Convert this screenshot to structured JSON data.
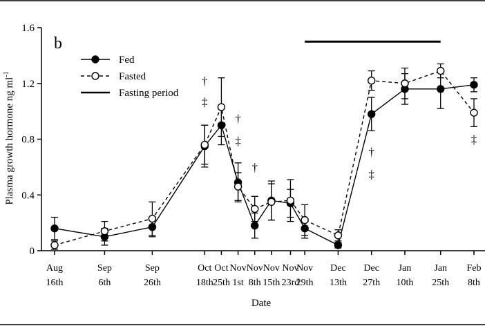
{
  "chart_data": {
    "type": "line",
    "panel_label": "b",
    "xlabel": "Date",
    "ylabel": "Plasma growth hormone ng ml",
    "ylabel_sup": "-1",
    "ylim": [
      0,
      1.6
    ],
    "yticks": [
      "0",
      "0.4",
      "0.8",
      "1.2",
      "1.6"
    ],
    "x_dates": [
      "Aug 16",
      "Sep 6",
      "Sep 26",
      "Oct 18",
      "Oct 25",
      "Nov 1",
      "Nov 8",
      "Nov 15",
      "Nov 23",
      "Nov 29",
      "Dec 13",
      "Dec 27",
      "Jan 10",
      "Jan 25",
      "Feb 8"
    ],
    "xticks": [
      {
        "month": "Aug",
        "day": "16th"
      },
      {
        "month": "Sep",
        "day": "6th"
      },
      {
        "month": "Sep",
        "day": "26th"
      },
      {
        "month": "Oct",
        "day": "18th"
      },
      {
        "month": "Oct",
        "day": "25th"
      },
      {
        "month": "Nov",
        "day": "1st"
      },
      {
        "month": "Nov",
        "day": "8th"
      },
      {
        "month": "Nov",
        "day": "15th"
      },
      {
        "month": "Nov",
        "day": "23rd"
      },
      {
        "month": "Nov",
        "day": "29th"
      },
      {
        "month": "Dec",
        "day": "13th"
      },
      {
        "month": "Dec",
        "day": "27th"
      },
      {
        "month": "Jan",
        "day": "10th"
      },
      {
        "month": "Jan",
        "day": "25th"
      },
      {
        "month": "Feb",
        "day": "8th"
      }
    ],
    "series": [
      {
        "name": "Fed",
        "style": "solid",
        "marker": "filled-circle",
        "values": [
          0.16,
          0.1,
          0.17,
          0.75,
          0.9,
          0.49,
          0.18,
          0.36,
          0.34,
          0.16,
          0.04,
          0.98,
          1.16,
          1.16,
          1.19
        ],
        "errors": [
          0.08,
          0.06,
          0.07,
          0.15,
          0.14,
          0.14,
          0.09,
          0.14,
          0.1,
          0.07,
          0.02,
          0.12,
          0.11,
          0.14,
          0.05
        ]
      },
      {
        "name": "Fasted",
        "style": "dashed",
        "marker": "open-circle",
        "values": [
          0.04,
          0.14,
          0.23,
          0.76,
          1.03,
          0.46,
          0.3,
          0.35,
          0.36,
          0.22,
          0.11,
          1.22,
          1.2,
          1.29,
          0.99
        ],
        "errors": [
          0.03,
          0.07,
          0.12,
          0.14,
          0.21,
          0.1,
          0.09,
          0.13,
          0.15,
          0.11,
          0.04,
          0.07,
          0.11,
          0.05,
          0.1
        ]
      }
    ],
    "fasting_period": {
      "name": "Fasting period",
      "start": "Nov 29",
      "end": "Jan 25",
      "y": 1.5
    },
    "annotations": [
      {
        "x": "Oct 18",
        "y": 1.19,
        "text": "†"
      },
      {
        "x": "Oct 18",
        "y": 1.04,
        "text": "‡"
      },
      {
        "x": "Nov 1",
        "y": 0.92,
        "text": "†"
      },
      {
        "x": "Nov 1",
        "y": 0.76,
        "text": "‡"
      },
      {
        "x": "Nov 8",
        "y": 0.57,
        "text": "†"
      },
      {
        "x": "Dec 27",
        "y": 0.68,
        "text": "†"
      },
      {
        "x": "Dec 27",
        "y": 0.52,
        "text": "‡"
      },
      {
        "x": "Feb 8",
        "y": 0.77,
        "text": "‡"
      }
    ],
    "legend": {
      "placement": "top-left",
      "items": [
        {
          "label": "Fed",
          "style": "solid",
          "marker": "filled-circle"
        },
        {
          "label": "Fasted",
          "style": "dashed",
          "marker": "open-circle"
        },
        {
          "label": "Fasting period",
          "style": "solid-thick",
          "marker": "none"
        }
      ]
    },
    "grid": false
  }
}
